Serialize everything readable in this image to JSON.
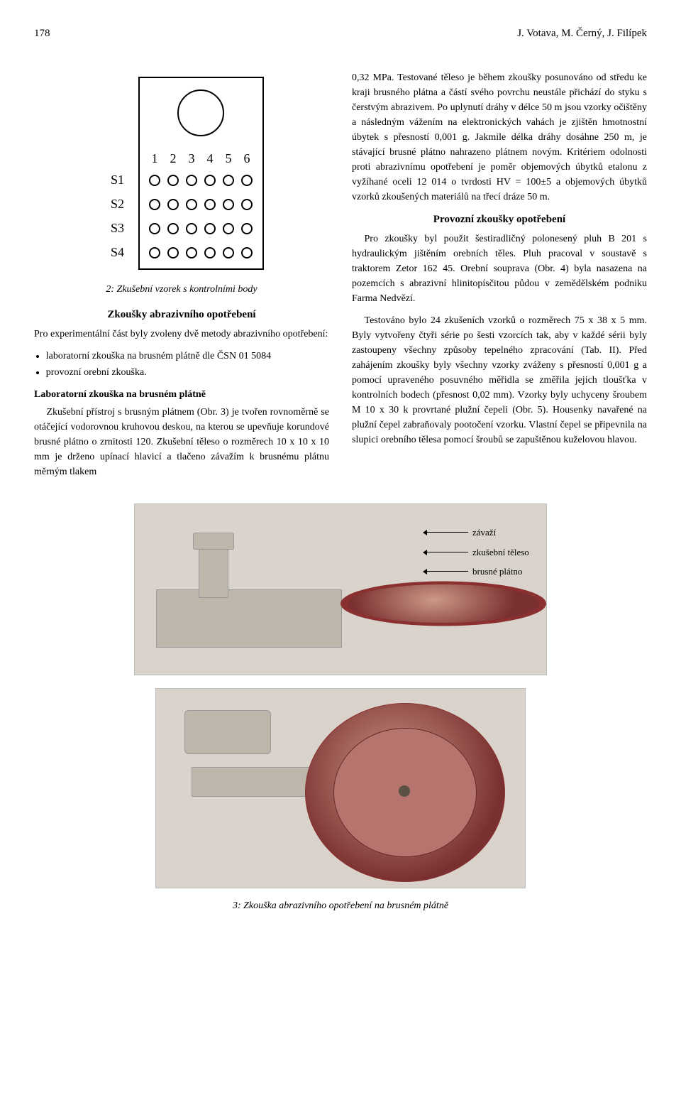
{
  "header": {
    "page_number": "178",
    "authors": "J. Votava, M. Černý, J. Filípek"
  },
  "diagram_fig2": {
    "row_labels": [
      "S1",
      "S2",
      "S3",
      "S4"
    ],
    "col_labels": [
      "1",
      "2",
      "3",
      "4",
      "5",
      "6"
    ],
    "caption": "2: Zkušební vzorek s kontrolními body"
  },
  "left": {
    "h_abraz": "Zkoušky abrazivního opotřebení",
    "p_abraz_intro": "Pro experimentální část byly zvoleny dvě metody abrazivního opotřebení:",
    "bullet1": "laboratorní zkouška na brusném plátně dle ČSN 01 5084",
    "bullet2": "provozní orební zkouška.",
    "h_lab": "Laboratorní zkouška na brusném plátně",
    "p_lab": "Zkušební přístroj s brusným plátnem (Obr. 3) je tvořen rovnoměrně se otáčející vodorovnou kruhovou deskou, na kterou se upevňuje korundové brusné plátno o zrnitosti 120. Zkušební těleso o rozměrech 10 x 10 x 10 mm je drženo upínací hlavicí a tlačeno závažím k brusnému plátnu měrným tlakem"
  },
  "right": {
    "p_cont": "0,32 MPa. Testované těleso je během zkoušky posunováno od středu ke kraji brusného plátna a částí svého povrchu neustále přichází do styku s čerstvým abrazivem. Po uplynutí dráhy v délce 50 m jsou vzorky očištěny a následným vážením na elektronických vahách je zjištěn hmotnostní úbytek s přesností 0,001 g. Jakmile délka dráhy dosáhne 250 m, je stávající brusné plátno nahrazeno plátnem novým. Kritériem odolnosti proti abrazivnímu opotřebení je poměr objemových úbytků etalonu z vyžíhané oceli 12 014 o tvrdosti HV = 100±5 a objemových úbytků vzorků zkoušených materiálů na třecí dráze 50 m.",
    "h_prov": "Provozní zkoušky opotřebení",
    "p_prov1": "Pro zkoušky byl použit šestiradličný polonesený pluh B 201 s hydraulickým jištěním orebních těles. Pluh pracoval v soustavě s traktorem Zetor 162 45. Orební souprava (Obr. 4) byla nasazena na pozemcích s abrazivní hlinitopísčitou půdou v zemědělském podniku Farma Nedvězí.",
    "p_prov2": "Testováno bylo 24 zkušeních vzorků o rozměrech 75 x 38 x 5 mm. Byly vytvořeny čtyři série po šesti vzorcích tak, aby v každé sérii byly zastoupeny všechny způsoby tepelného zpracování (Tab. II). Před zahájením zkoušky byly všechny vzorky zváženy s přesností 0,001 g a pomocí upraveného posuvného měřidla se změřila jejich tloušťka v kontrolních bodech (přesnost 0,02 mm). Vzorky byly uchyceny šroubem M 10 x 30 k provrtané plužní čepeli (Obr. 5). Housenky navařené na plužní čepel zabraňovaly pootočení vzorku. Vlastní čepel se připevnila na slupici orebního tělesa pomocí šroubů se zapuštěnou kuželovou hlavou."
  },
  "fig3": {
    "callout_a": "závaží",
    "callout_b": "zkušební těleso",
    "callout_c": "brusné plátno",
    "caption": "3: Zkouška abrazivního opotřebení na brusném plátně"
  }
}
